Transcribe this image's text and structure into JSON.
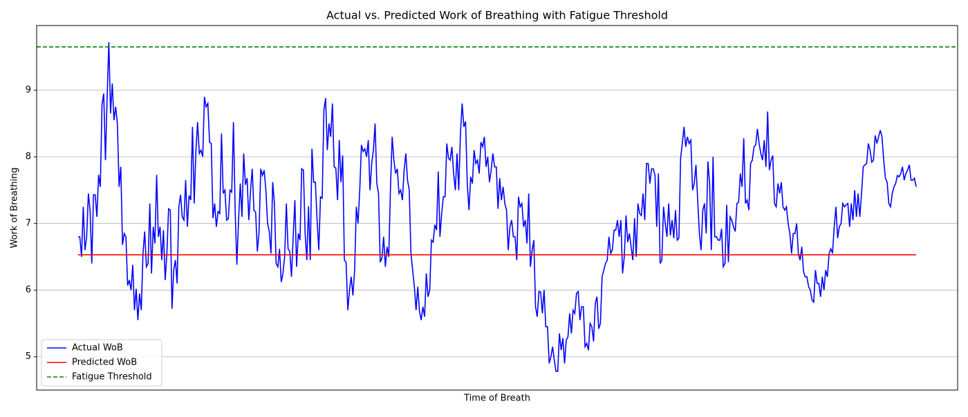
{
  "chart_data": {
    "type": "line",
    "title": "Actual vs. Predicted Work of Breathing with Fatigue Threshold",
    "xlabel": "Time of Breath",
    "ylabel": "Work of Breathing",
    "ylim": [
      4.5,
      9.97
    ],
    "yticks": [
      5,
      6,
      7,
      8,
      9
    ],
    "grid": true,
    "legend": "lower left",
    "series": [
      {
        "name": "Actual WoB",
        "color": "#0000ff",
        "values": [
          6.8,
          6.8,
          6.5,
          7.25,
          6.6,
          6.8,
          7.45,
          7.2,
          6.4,
          7.43,
          7.43,
          7.1,
          7.73,
          7.55,
          8.78,
          8.95,
          7.95,
          8.9,
          9.72,
          8.65,
          9.1,
          8.55,
          8.75,
          8.5,
          7.55,
          7.85,
          6.68,
          6.85,
          6.8,
          6.07,
          6.15,
          6.0,
          6.38,
          5.7,
          6.02,
          5.55,
          5.95,
          5.7,
          6.55,
          6.88,
          6.35,
          6.4,
          7.3,
          6.25,
          6.95,
          6.7,
          7.73,
          6.8,
          6.95,
          6.45,
          6.9,
          6.15,
          6.55,
          7.22,
          7.2,
          5.72,
          6.3,
          6.45,
          6.1,
          7.25,
          7.43,
          7.1,
          7.05,
          7.65,
          6.95,
          7.42,
          7.35,
          8.45,
          7.3,
          8.08,
          8.52,
          8.05,
          8.1,
          8.0,
          8.9,
          8.75,
          8.8,
          8.22,
          8.2,
          7.08,
          7.3,
          6.95,
          7.18,
          7.15,
          8.35,
          7.45,
          7.5,
          7.05,
          7.07,
          7.5,
          7.47,
          8.52,
          7.2,
          6.38,
          7.05,
          7.6,
          7.1,
          8.05,
          7.58,
          7.68,
          7.05,
          7.48,
          7.82,
          7.2,
          7.17,
          6.58,
          6.87,
          7.82,
          7.72,
          7.8,
          7.5,
          7.0,
          6.88,
          6.55,
          7.62,
          7.3,
          6.4,
          6.35,
          6.62,
          6.12,
          6.25,
          6.5,
          7.3,
          6.62,
          6.58,
          6.2,
          6.8,
          7.35,
          6.35,
          6.85,
          6.75,
          7.82,
          7.8,
          6.85,
          6.45,
          7.26,
          6.45,
          8.12,
          7.62,
          7.62,
          7.05,
          6.6,
          7.4,
          7.38,
          8.7,
          8.88,
          8.1,
          8.5,
          8.3,
          8.8,
          7.85,
          7.83,
          7.35,
          8.25,
          7.62,
          8.02,
          6.45,
          6.42,
          5.7,
          6.0,
          6.2,
          5.92,
          6.3,
          7.25,
          7.0,
          7.5,
          8.18,
          8.08,
          8.12,
          8.0,
          8.25,
          7.5,
          7.9,
          8.1,
          8.5,
          7.6,
          7.45,
          6.42,
          6.48,
          6.8,
          6.35,
          6.65,
          6.5,
          7.52,
          8.3,
          7.95,
          7.75,
          7.82,
          7.45,
          7.5,
          7.35,
          7.8,
          8.05,
          7.65,
          7.5,
          6.55,
          6.3,
          6.05,
          5.7,
          6.05,
          5.68,
          5.55,
          5.75,
          5.6,
          6.25,
          5.9,
          6.0,
          6.75,
          6.72,
          6.98,
          6.9,
          7.78,
          6.8,
          7.15,
          7.4,
          7.4,
          8.2,
          7.98,
          7.95,
          8.15,
          7.75,
          7.5,
          8.05,
          7.5,
          8.35,
          8.8,
          8.45,
          8.53,
          7.6,
          7.2,
          7.7,
          7.6,
          8.1,
          7.9,
          7.95,
          7.75,
          8.22,
          8.15,
          8.3,
          7.85,
          8.0,
          7.62,
          7.8,
          8.05,
          7.85,
          7.85,
          7.22,
          7.68,
          7.35,
          7.55,
          7.3,
          7.2,
          6.6,
          6.95,
          7.05,
          6.8,
          6.8,
          6.45,
          7.4,
          7.25,
          7.3,
          6.95,
          7.05,
          6.7,
          7.45,
          6.35,
          6.6,
          6.75,
          5.75,
          5.6,
          5.98,
          5.97,
          5.65,
          6.0,
          5.45,
          5.45,
          4.9,
          5.0,
          5.15,
          4.95,
          4.78,
          4.78,
          5.35,
          5.1,
          5.28,
          4.9,
          5.25,
          5.3,
          5.65,
          5.35,
          5.7,
          5.65,
          5.95,
          5.98,
          5.55,
          5.75,
          5.75,
          5.15,
          5.2,
          5.1,
          5.5,
          5.45,
          5.23,
          5.8,
          5.9,
          5.42,
          5.5,
          6.2,
          6.3,
          6.4,
          6.45,
          6.8,
          6.55,
          6.6,
          6.9,
          6.9,
          7.05,
          6.8,
          7.05,
          6.25,
          6.5,
          7.12,
          6.72,
          6.85,
          6.65,
          6.45,
          7.08,
          6.5,
          7.3,
          7.15,
          7.12,
          7.45,
          7.05,
          7.9,
          7.9,
          7.6,
          7.82,
          7.82,
          7.72,
          6.95,
          7.75,
          6.4,
          6.45,
          7.25,
          7.0,
          6.8,
          7.3,
          6.82,
          7.05,
          6.78,
          7.2,
          6.75,
          6.78,
          7.98,
          8.2,
          8.45,
          8.15,
          8.3,
          8.2,
          8.25,
          7.5,
          7.6,
          7.88,
          7.35,
          6.85,
          6.6,
          7.2,
          7.3,
          6.85,
          7.93,
          7.6,
          6.6,
          8.0,
          6.8,
          6.8,
          6.75,
          6.75,
          6.92,
          6.35,
          6.4,
          7.28,
          6.42,
          7.1,
          7.05,
          6.95,
          6.88,
          7.3,
          7.32,
          7.75,
          7.55,
          8.28,
          7.3,
          7.35,
          7.2,
          7.9,
          7.95,
          8.15,
          8.18,
          8.42,
          8.2,
          8.05,
          7.95,
          8.25,
          7.85,
          8.68,
          7.8,
          7.95,
          8.02,
          7.3,
          7.25,
          7.6,
          7.45,
          7.62,
          7.25,
          7.2,
          7.25,
          7.0,
          6.85,
          6.55,
          6.85,
          6.85,
          7.0,
          6.55,
          6.45,
          6.65,
          6.28,
          6.2,
          6.2,
          6.05,
          6.0,
          5.85,
          5.82,
          6.3,
          6.1,
          6.1,
          5.9,
          6.2,
          6.0,
          6.3,
          6.2,
          6.55,
          6.62,
          6.55,
          6.95,
          7.25,
          6.78,
          6.95,
          7.0,
          7.3,
          7.25,
          7.28,
          7.3,
          6.95,
          7.3,
          7.05,
          7.5,
          7.1,
          7.45,
          7.1,
          7.45,
          7.85,
          7.88,
          7.9,
          8.2,
          8.1,
          7.92,
          7.95,
          8.32,
          8.2,
          8.3,
          8.4,
          8.3,
          7.95,
          7.68,
          7.62,
          7.3,
          7.25,
          7.45,
          7.55,
          7.6,
          7.72,
          7.7,
          7.75,
          7.85,
          7.65,
          7.75,
          7.8,
          7.88,
          7.65,
          7.65,
          7.68,
          7.55
        ]
      }
    ],
    "hlines": [
      {
        "name": "Predicted WoB",
        "value": 6.53,
        "color": "#ff0000",
        "style": "solid",
        "span": "data"
      },
      {
        "name": "Fatigue Threshold",
        "value": 9.65,
        "color": "#008000",
        "style": "dashed",
        "span": "full"
      }
    ]
  }
}
